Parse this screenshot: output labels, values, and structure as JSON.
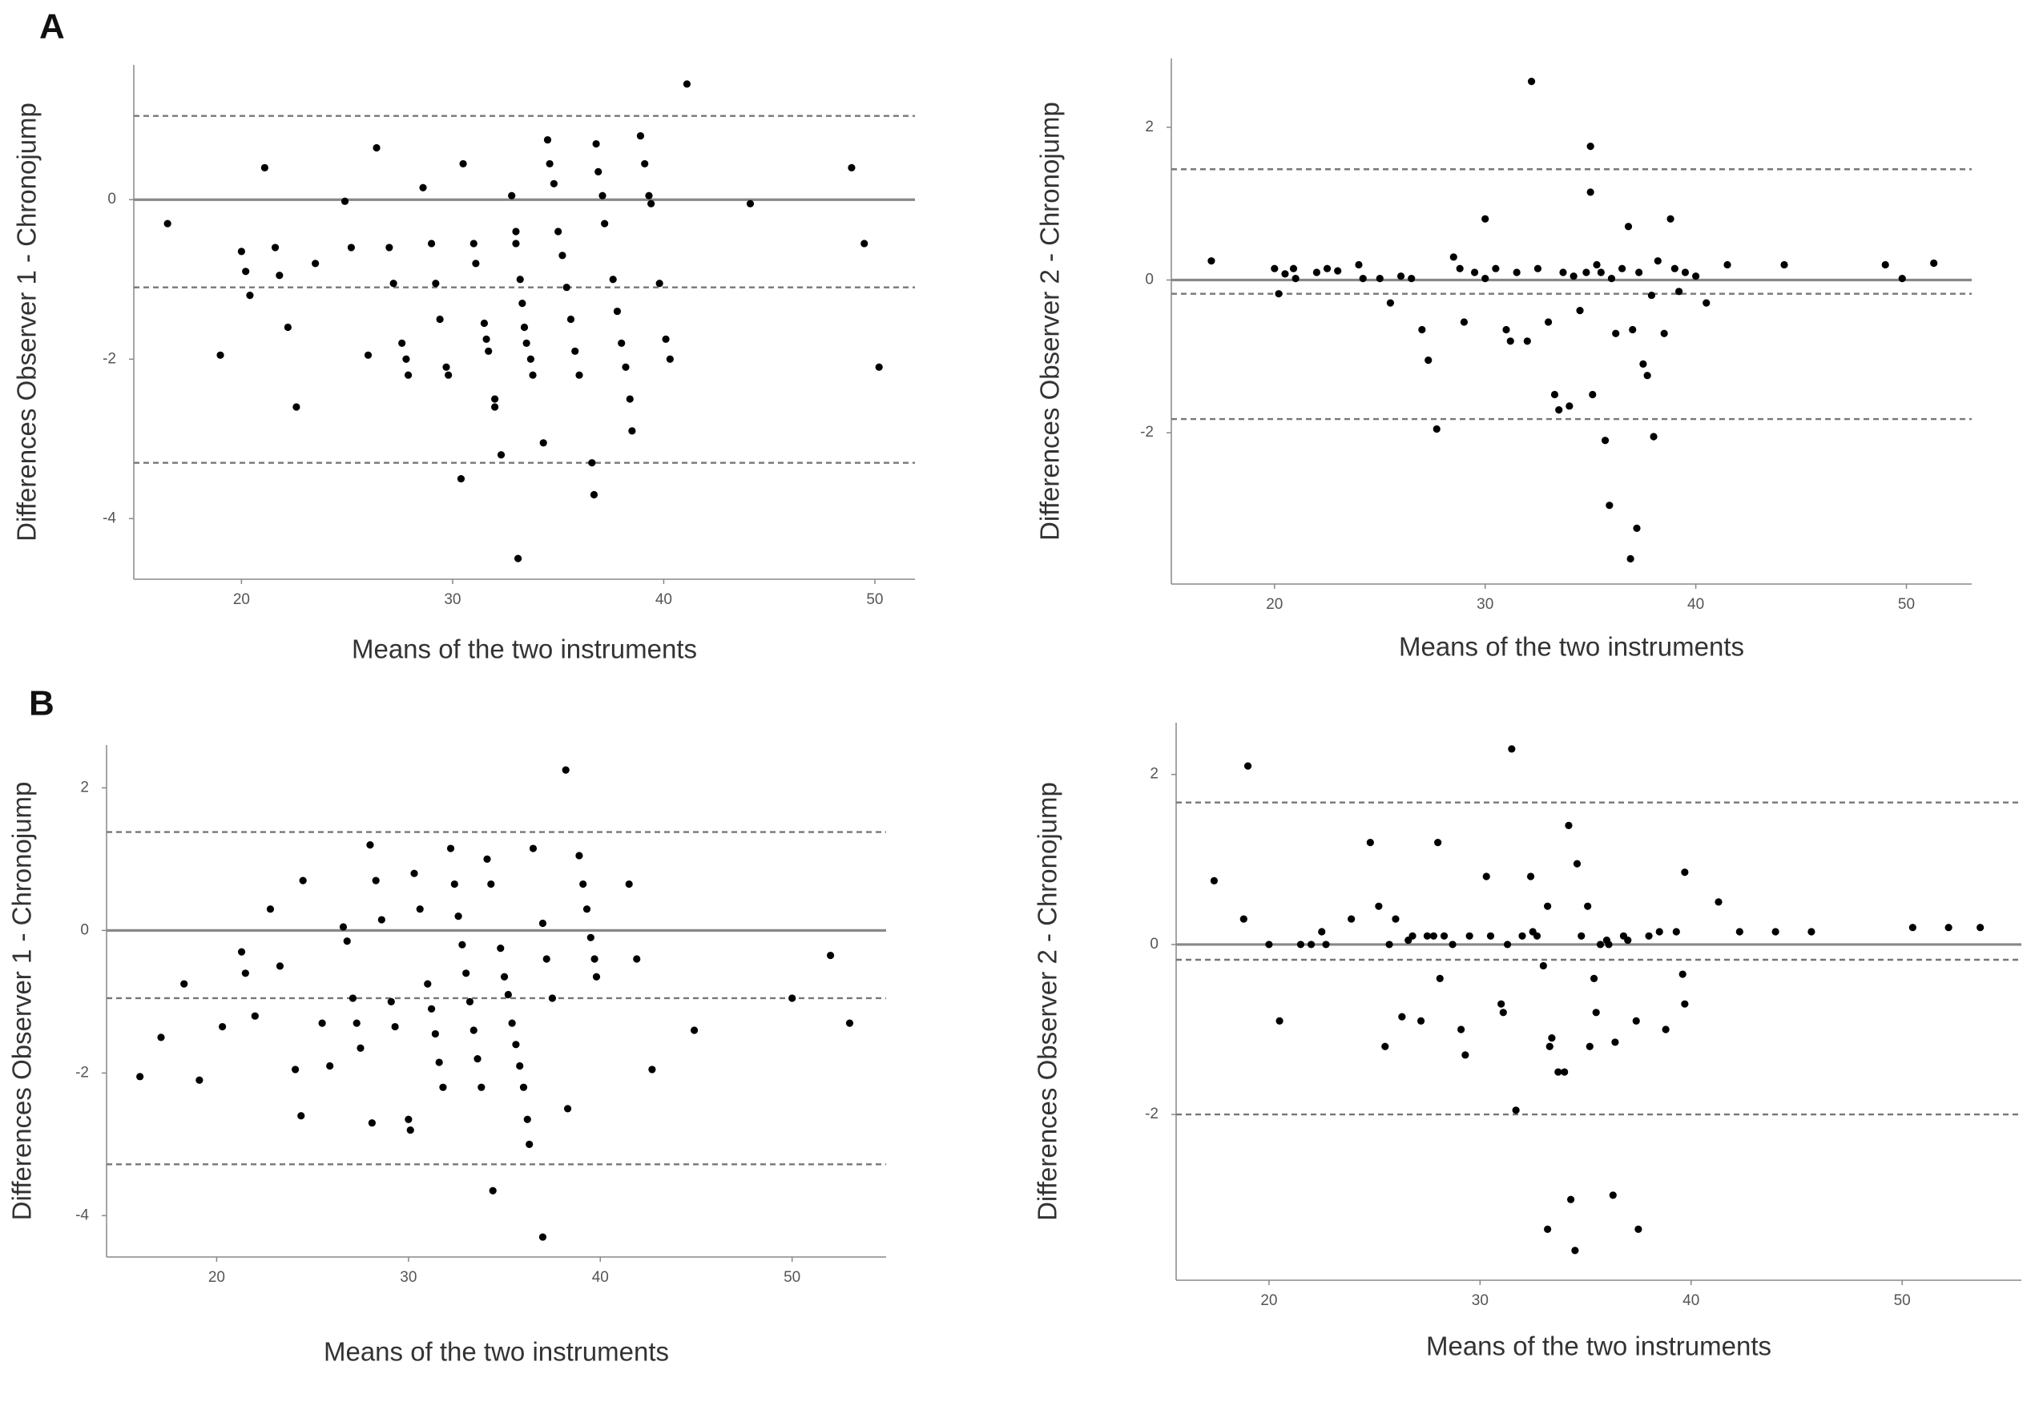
{
  "panel_labels": [
    "A",
    "B"
  ],
  "chart_data": [
    {
      "type": "scatter",
      "x_label": "Means of the two instruments",
      "y_label": "Differences Observer 1 - Chronojump",
      "xlim": [
        14.9,
        51.9
      ],
      "ylim": [
        -4.76,
        1.69
      ],
      "xticks": [
        20,
        30,
        40,
        50
      ],
      "yticks": [
        -4,
        -2,
        0
      ],
      "color": "#000000",
      "hlines": [
        {
          "y": 0,
          "dash": false
        },
        {
          "y": 1.05,
          "dash": true
        },
        {
          "y": -1.1,
          "dash": true
        },
        {
          "y": -3.3,
          "dash": true
        }
      ],
      "x": [
        16.5,
        19,
        20,
        20.2,
        20.4,
        21.1,
        21.6,
        21.8,
        22.2,
        22.6,
        23.5,
        24.9,
        25.2,
        26,
        26.4,
        27,
        27.2,
        27.6,
        27.8,
        27.9,
        28.6,
        29,
        29.2,
        29.4,
        29.7,
        29.8,
        30.4,
        30.5,
        31,
        31.1,
        31.5,
        31.6,
        31.7,
        32,
        32,
        32.3,
        32.8,
        33,
        33,
        33.2,
        33.3,
        33.4,
        33.5,
        33.7,
        33.8,
        33.1,
        34.3,
        34.5,
        34.6,
        34.8,
        35,
        35.2,
        35.4,
        35.6,
        35.8,
        36,
        36.6,
        36.7,
        36.8,
        36.9,
        37.1,
        37.2,
        37.6,
        37.8,
        38,
        38.2,
        38.4,
        38.5,
        38.9,
        39.1,
        39.3,
        39.4,
        39.8,
        40.1,
        40.3,
        41.1,
        44.1,
        48.9,
        49.5,
        50.2
      ],
      "values": [
        -0.3,
        -1.95,
        -0.65,
        -0.9,
        -1.2,
        0.4,
        -0.6,
        -0.95,
        -1.6,
        -2.6,
        -0.8,
        -0.02,
        -0.6,
        -1.95,
        0.65,
        -0.6,
        -1.05,
        -1.8,
        -2,
        -2.2,
        0.15,
        -0.55,
        -1.05,
        -1.5,
        -2.1,
        -2.2,
        -3.5,
        0.45,
        -0.55,
        -0.8,
        -1.55,
        -1.75,
        -1.9,
        -2.5,
        -2.6,
        -3.2,
        0.05,
        -0.4,
        -0.55,
        -1,
        -1.3,
        -1.6,
        -1.8,
        -2,
        -2.2,
        -4.5,
        -3.05,
        0.75,
        0.45,
        0.2,
        -0.4,
        -0.7,
        -1.1,
        -1.5,
        -1.9,
        -2.2,
        -3.3,
        -3.7,
        0.7,
        0.35,
        0.05,
        -0.3,
        -1,
        -1.4,
        -1.8,
        -2.1,
        -2.5,
        -2.9,
        0.8,
        0.45,
        0.05,
        -0.05,
        -1.05,
        -1.75,
        -2,
        1.45,
        -0.05,
        0.4,
        -0.55,
        -2.1
      ]
    },
    {
      "type": "scatter",
      "x_label": "Means of the two instruments",
      "y_label": "Differences Observer 2 - Chronojump",
      "xlim": [
        15.1,
        53.1
      ],
      "ylim": [
        -3.98,
        2.9
      ],
      "xticks": [
        20,
        30,
        40,
        50
      ],
      "yticks": [
        -2,
        0,
        2
      ],
      "color": "#000000",
      "hlines": [
        {
          "y": 0,
          "dash": false
        },
        {
          "y": 1.45,
          "dash": true
        },
        {
          "y": -0.18,
          "dash": true
        },
        {
          "y": -1.82,
          "dash": true
        }
      ],
      "x": [
        17,
        20,
        20.2,
        20.5,
        20.9,
        21,
        22,
        22.5,
        23,
        24,
        24.2,
        25,
        25.5,
        26,
        26.5,
        27,
        27.3,
        27.7,
        28.5,
        28.8,
        29,
        29.5,
        30,
        30,
        30.5,
        31,
        31.2,
        31.5,
        32,
        32.2,
        32.5,
        33,
        33.3,
        33.5,
        34,
        34.5,
        34.8,
        35,
        35,
        35.1,
        35.3,
        35.5,
        35.7,
        35.9,
        36.2,
        36.5,
        36.8,
        37,
        37.2,
        36.9,
        37.5,
        37.7,
        37.9,
        38,
        38.2,
        38.5,
        38.8,
        39,
        39.2,
        39.5,
        40,
        40.5,
        41.5,
        44.2,
        49,
        49.8,
        51.3,
        33.7,
        34.2,
        36,
        37.3
      ],
      "values": [
        0.25,
        0.15,
        -0.18,
        0.08,
        0.15,
        0.02,
        0.1,
        0.15,
        0.12,
        0.2,
        0.02,
        0.02,
        -0.3,
        0.05,
        0.02,
        -0.65,
        -1.05,
        -1.95,
        0.3,
        0.15,
        -0.55,
        0.1,
        0.8,
        0.02,
        0.15,
        -0.65,
        -0.8,
        0.1,
        -0.8,
        2.6,
        0.15,
        -0.55,
        -1.5,
        -1.7,
        -1.65,
        -0.4,
        0.1,
        1.75,
        1.15,
        -1.5,
        0.2,
        0.1,
        -2.1,
        -2.95,
        -0.7,
        0.15,
        0.7,
        -0.65,
        -3.25,
        -3.65,
        -1.1,
        -1.25,
        -0.2,
        -2.05,
        0.25,
        -0.7,
        0.8,
        0.15,
        -0.15,
        0.1,
        0.05,
        -0.3,
        0.2,
        0.2,
        0.2,
        0.02,
        0.22,
        0.1,
        0.05,
        0.02,
        0.1
      ]
    },
    {
      "type": "scatter",
      "x_label": "Means of the two instruments",
      "y_label": "Differences Observer 1 - Chronojump",
      "xlim": [
        14.26,
        54.9
      ],
      "ylim": [
        -4.58,
        2.6
      ],
      "xticks": [
        20,
        30,
        40,
        50
      ],
      "yticks": [
        -4,
        -2,
        0,
        2
      ],
      "color": "#000000",
      "hlines": [
        {
          "y": 0,
          "dash": false
        },
        {
          "y": 1.38,
          "dash": true
        },
        {
          "y": -0.95,
          "dash": true
        },
        {
          "y": -3.28,
          "dash": true
        }
      ],
      "x": [
        16,
        17.1,
        18.3,
        19.1,
        20.3,
        21.3,
        21.5,
        22,
        22.8,
        23.3,
        24.1,
        24.4,
        24.5,
        25.5,
        25.9,
        26.6,
        26.8,
        27.1,
        27.3,
        27.5,
        28,
        28.1,
        28.3,
        28.6,
        29.1,
        29.3,
        30,
        30.1,
        30.3,
        30.6,
        31,
        31.2,
        31.4,
        31.6,
        31.8,
        32.2,
        32.4,
        32.6,
        32.8,
        33,
        33.2,
        33.4,
        33.6,
        33.8,
        34.1,
        34.3,
        34.4,
        34.8,
        35,
        35.2,
        35.4,
        35.6,
        35.8,
        36,
        36.2,
        36.3,
        36.5,
        37,
        37.2,
        37.5,
        37,
        38.2,
        38.3,
        38.9,
        39.1,
        39.3,
        39.5,
        39.7,
        39.8,
        41.5,
        41.9,
        42.7,
        44.9,
        50,
        52,
        53
      ],
      "values": [
        -2.05,
        -1.5,
        -0.75,
        -2.1,
        -1.35,
        -0.3,
        -0.6,
        -1.2,
        0.3,
        -0.5,
        -1.95,
        -2.6,
        0.7,
        -1.3,
        -1.9,
        0.05,
        -0.15,
        -0.95,
        -1.3,
        -1.65,
        1.2,
        -2.7,
        0.7,
        0.15,
        -1,
        -1.35,
        -2.65,
        -2.8,
        0.8,
        0.3,
        -0.75,
        -1.1,
        -1.45,
        -1.85,
        -2.2,
        1.15,
        0.65,
        0.2,
        -0.2,
        -0.6,
        -1,
        -1.4,
        -1.8,
        -2.2,
        1,
        0.65,
        -3.65,
        -0.25,
        -0.65,
        -0.9,
        -1.3,
        -1.6,
        -1.9,
        -2.2,
        -2.65,
        -3,
        1.15,
        0.1,
        -0.4,
        -0.95,
        -4.3,
        2.25,
        -2.5,
        1.05,
        0.65,
        0.3,
        -0.1,
        -0.4,
        -0.65,
        0.65,
        -0.4,
        -1.95,
        -1.4,
        -0.95,
        -0.35,
        -1.3
      ]
    },
    {
      "type": "scatter",
      "x_label": "Means of the two instruments",
      "y_label": "Differences Observer 2 - Chronojump",
      "xlim": [
        15.6,
        55.65
      ],
      "ylim": [
        -3.95,
        2.61
      ],
      "xticks": [
        20,
        30,
        40,
        50
      ],
      "yticks": [
        -2,
        0,
        2
      ],
      "color": "#000000",
      "hlines": [
        {
          "y": 0,
          "dash": false
        },
        {
          "y": 1.67,
          "dash": true
        },
        {
          "y": -0.18,
          "dash": true
        },
        {
          "y": -2,
          "dash": true
        }
      ],
      "x": [
        17.4,
        18.8,
        19,
        20,
        20.5,
        21.5,
        22,
        22.5,
        22.7,
        23.9,
        24.8,
        25.2,
        25.5,
        25.7,
        26,
        26.3,
        26.6,
        26.8,
        27.2,
        27.5,
        27.8,
        28,
        28.1,
        28.3,
        28.7,
        29.1,
        29.3,
        29.5,
        30.3,
        30.5,
        31,
        31.1,
        31.3,
        31.5,
        31.7,
        32,
        32.4,
        32.7,
        33,
        33.2,
        33.3,
        33.4,
        33.2,
        33.7,
        34,
        34.2,
        34.3,
        34.5,
        34.6,
        34.8,
        35.1,
        35.2,
        35.4,
        35.5,
        36.1,
        36.3,
        36.4,
        36.8,
        37,
        37.4,
        37.5,
        38,
        38.5,
        38.8,
        39.3,
        39.6,
        39.7,
        39.7,
        41.3,
        42.3,
        44,
        45.7,
        50.5,
        52.2,
        53.7,
        35.7,
        36,
        32.5
      ],
      "values": [
        0.75,
        0.3,
        2.1,
        0,
        -0.9,
        0,
        0,
        0.15,
        0,
        0.3,
        1.2,
        0.45,
        -1.2,
        0,
        0.3,
        -0.85,
        0.05,
        0.1,
        -0.9,
        0.1,
        0.1,
        1.2,
        -0.4,
        0.1,
        0,
        -1,
        -1.3,
        0.1,
        0.8,
        0.1,
        -0.7,
        -0.8,
        0,
        2.3,
        -1.95,
        0.1,
        0.8,
        0.1,
        -0.25,
        0.45,
        -1.2,
        -1.1,
        -3.35,
        -1.5,
        -1.5,
        1.4,
        -3,
        -3.6,
        0.95,
        0.1,
        0.45,
        -1.2,
        -0.4,
        -0.8,
        0,
        -2.95,
        -1.15,
        0.1,
        0.05,
        -0.9,
        -3.35,
        0.1,
        0.15,
        -1,
        0.15,
        -0.35,
        -0.7,
        0.85,
        0.5,
        0.15,
        0.15,
        0.15,
        0.2,
        0.2,
        0.2,
        0,
        0.05,
        0.15
      ]
    }
  ]
}
